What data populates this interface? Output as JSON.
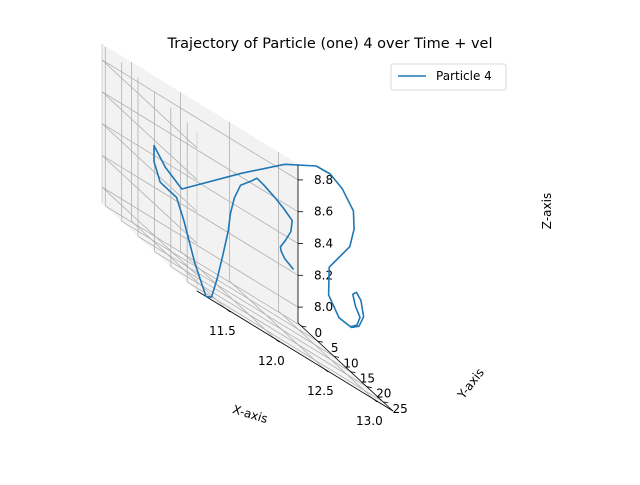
{
  "chart_data": {
    "type": "line",
    "projection": "3d",
    "title": "Trajectory of Particle (one) 4 over Time + vel",
    "xlabel": "X-axis",
    "ylabel": "Y-axis",
    "zlabel": "Z-axis",
    "xticks": [
      "11.5",
      "12.0",
      "12.5",
      "13.0"
    ],
    "yticks": [
      "0",
      "5",
      "10",
      "15",
      "20",
      "25"
    ],
    "zticks": [
      "8.0",
      "8.2",
      "8.4",
      "8.6",
      "8.8"
    ],
    "xlim": [
      11.2,
      13.2
    ],
    "ylim": [
      -1,
      28
    ],
    "zlim": [
      7.9,
      8.9
    ],
    "grid": true,
    "legend_position": "upper-right",
    "series": [
      {
        "name": "Particle 4",
        "color": "#1f77b4",
        "points": [
          [
            13.05,
            2.0,
            8.24
          ],
          [
            12.99,
            2.5,
            8.26
          ],
          [
            12.93,
            3.0,
            8.28
          ],
          [
            12.86,
            4.0,
            8.32
          ],
          [
            12.82,
            5.0,
            8.35
          ],
          [
            12.84,
            6.0,
            8.42
          ],
          [
            12.86,
            7.0,
            8.5
          ],
          [
            12.84,
            8.0,
            8.58
          ],
          [
            12.72,
            9.0,
            8.63
          ],
          [
            12.6,
            10.0,
            8.67
          ],
          [
            12.47,
            10.5,
            8.71
          ],
          [
            12.38,
            11.0,
            8.73
          ],
          [
            12.3,
            11.5,
            8.69
          ],
          [
            12.18,
            12.0,
            8.63
          ],
          [
            12.1,
            12.5,
            8.53
          ],
          [
            12.05,
            12.8,
            8.42
          ],
          [
            12.02,
            13.0,
            8.3
          ],
          [
            11.98,
            12.5,
            8.12
          ],
          [
            11.94,
            12.0,
            7.95
          ],
          [
            11.9,
            11.5,
            7.81
          ],
          [
            11.86,
            11.0,
            7.79
          ],
          [
            11.78,
            10.0,
            7.95
          ],
          [
            11.7,
            9.0,
            8.17
          ],
          [
            11.66,
            8.0,
            8.28
          ],
          [
            11.56,
            6.0,
            8.3
          ],
          [
            11.53,
            5.0,
            8.4
          ],
          [
            11.53,
            5.0,
            8.5
          ],
          [
            11.58,
            7.0,
            8.42
          ],
          [
            11.68,
            9.0,
            8.36
          ],
          [
            12.12,
            14.0,
            8.72
          ],
          [
            12.43,
            18.0,
            8.97
          ],
          [
            12.65,
            21.0,
            9.1
          ],
          [
            12.76,
            22.0,
            9.11
          ],
          [
            12.85,
            23.0,
            9.07
          ],
          [
            12.93,
            24.0,
            8.98
          ],
          [
            12.93,
            24.2,
            8.87
          ],
          [
            12.9,
            23.8,
            8.74
          ],
          [
            12.82,
            23.0,
            8.63
          ],
          [
            12.75,
            22.0,
            8.52
          ],
          [
            12.76,
            21.5,
            8.34
          ],
          [
            12.85,
            22.0,
            8.24
          ],
          [
            12.95,
            22.5,
            8.23
          ],
          [
            13.0,
            23.0,
            8.27
          ],
          [
            13.03,
            23.0,
            8.33
          ],
          [
            13.0,
            22.5,
            8.38
          ],
          [
            12.99,
            22.0,
            8.44
          ],
          [
            13.01,
            22.5,
            8.47
          ],
          [
            13.04,
            23.0,
            8.44
          ],
          [
            13.05,
            23.5,
            8.35
          ],
          [
            13.02,
            23.0,
            8.27
          ],
          [
            12.96,
            22.5,
            8.23
          ]
        ]
      }
    ]
  }
}
